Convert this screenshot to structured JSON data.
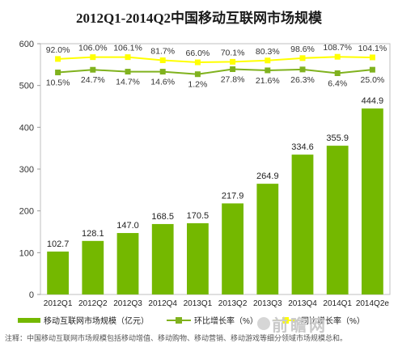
{
  "title": "2012Q1-2014Q2中国移动互联网市场规模",
  "chart_data": {
    "type": "bar",
    "categories": [
      "2012Q1",
      "2012Q2",
      "2012Q3",
      "2012Q4",
      "2013Q1",
      "2013Q2",
      "2013Q3",
      "2013Q4",
      "2014Q1",
      "2014Q2e"
    ],
    "ylim": [
      0,
      600
    ],
    "yticks": [
      0,
      100,
      200,
      300,
      400,
      500,
      600
    ],
    "ylabel": "",
    "xlabel": "",
    "grid": false,
    "series": [
      {
        "name": "移动互联网市场规模（亿元）",
        "type": "bar",
        "color": "#74b800",
        "values": [
          102.7,
          128.1,
          147.0,
          168.5,
          170.5,
          217.9,
          264.9,
          334.6,
          355.9,
          444.9
        ],
        "labels": [
          "102.7",
          "128.1",
          "147.0",
          "168.5",
          "170.5",
          "217.9",
          "264.9",
          "334.6",
          "355.9",
          "444.9"
        ]
      },
      {
        "name": "环比增长率（%）",
        "type": "line",
        "color": "#80b21e",
        "values": [
          10.5,
          24.7,
          14.7,
          14.6,
          1.2,
          27.8,
          21.6,
          26.3,
          6.4,
          25.0
        ],
        "labels": [
          "10.5%",
          "24.7%",
          "14.7%",
          "14.6%",
          "1.2%",
          "27.8%",
          "21.6%",
          "26.3%",
          "6.4%",
          "25.0%"
        ]
      },
      {
        "name": "同比增长率（%）",
        "type": "line",
        "color": "#ffff00",
        "values": [
          92.0,
          106.0,
          106.1,
          81.7,
          66.0,
          70.1,
          80.3,
          98.6,
          108.7,
          104.1
        ],
        "labels": [
          "92.0%",
          "106.0%",
          "106.1%",
          "81.7%",
          "66.0%",
          "70.1%",
          "80.3%",
          "98.6%",
          "108.7%",
          "104.1%"
        ]
      }
    ]
  },
  "note": "注释：中国移动互联网市场规模包括移动增值、移动购物、移动营销、移动游戏等细分领域市场规模总和。",
  "watermark": "前瞻网"
}
